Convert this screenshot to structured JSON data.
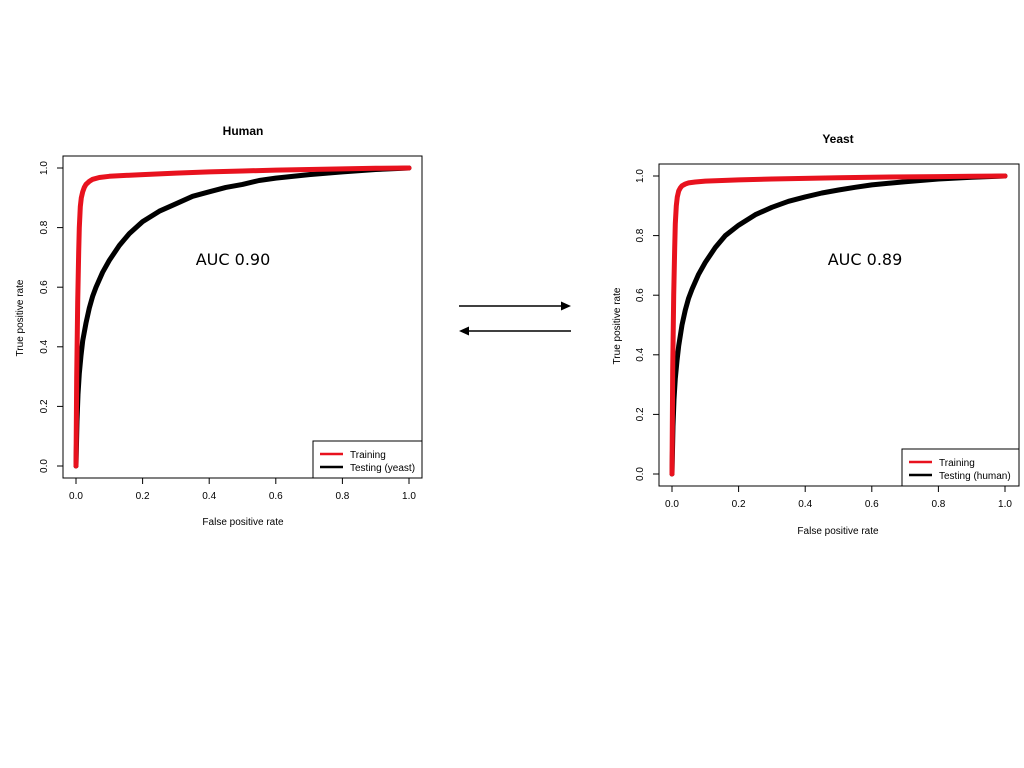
{
  "colors": {
    "training": "#e8121e",
    "testing": "#000000",
    "axis": "#000000",
    "background": "#ffffff"
  },
  "arrows": [
    {
      "direction": "right"
    },
    {
      "direction": "left"
    }
  ],
  "chart_data": [
    {
      "type": "line",
      "title": "Human",
      "xlabel": "False positive rate",
      "ylabel": "True positive rate",
      "xlim": [
        0,
        1
      ],
      "ylim": [
        0,
        1
      ],
      "xticks": [
        "0.0",
        "0.2",
        "0.4",
        "0.6",
        "0.8",
        "1.0"
      ],
      "yticks": [
        "0.0",
        "0.2",
        "0.4",
        "0.6",
        "0.8",
        "1.0"
      ],
      "grid": false,
      "legend_position": "bottom-right",
      "annotation": "AUC 0.90",
      "series": [
        {
          "name": "Training",
          "color": "#e8121e",
          "x": [
            0,
            0.002,
            0.005,
            0.008,
            0.01,
            0.013,
            0.016,
            0.02,
            0.025,
            0.03,
            0.04,
            0.05,
            0.07,
            0.1,
            0.15,
            0.2,
            0.3,
            0.4,
            0.5,
            0.6,
            0.7,
            0.8,
            0.9,
            1.0
          ],
          "y": [
            0,
            0.3,
            0.55,
            0.72,
            0.8,
            0.87,
            0.9,
            0.92,
            0.935,
            0.945,
            0.955,
            0.962,
            0.968,
            0.972,
            0.975,
            0.978,
            0.983,
            0.987,
            0.99,
            0.993,
            0.995,
            0.997,
            0.999,
            1.0
          ]
        },
        {
          "name": "Testing (yeast)",
          "color": "#000000",
          "x": [
            0,
            0.003,
            0.006,
            0.01,
            0.015,
            0.02,
            0.03,
            0.04,
            0.05,
            0.06,
            0.08,
            0.1,
            0.13,
            0.16,
            0.2,
            0.25,
            0.3,
            0.35,
            0.4,
            0.45,
            0.5,
            0.55,
            0.6,
            0.7,
            0.8,
            0.9,
            1.0
          ],
          "y": [
            0,
            0.15,
            0.24,
            0.31,
            0.37,
            0.42,
            0.48,
            0.53,
            0.57,
            0.6,
            0.65,
            0.69,
            0.74,
            0.78,
            0.82,
            0.855,
            0.88,
            0.905,
            0.92,
            0.935,
            0.945,
            0.958,
            0.966,
            0.978,
            0.987,
            0.995,
            1.0
          ]
        }
      ]
    },
    {
      "type": "line",
      "title": "Yeast",
      "xlabel": "False positive rate",
      "ylabel": "True positive rate",
      "xlim": [
        0,
        1
      ],
      "ylim": [
        0,
        1
      ],
      "xticks": [
        "0.0",
        "0.2",
        "0.4",
        "0.6",
        "0.8",
        "1.0"
      ],
      "yticks": [
        "0.0",
        "0.2",
        "0.4",
        "0.6",
        "0.8",
        "1.0"
      ],
      "grid": false,
      "legend_position": "bottom-right",
      "annotation": "AUC 0.89",
      "series": [
        {
          "name": "Training",
          "color": "#e8121e",
          "x": [
            0,
            0.002,
            0.005,
            0.008,
            0.01,
            0.013,
            0.016,
            0.02,
            0.025,
            0.03,
            0.04,
            0.05,
            0.07,
            0.1,
            0.15,
            0.2,
            0.3,
            0.4,
            0.5,
            0.6,
            0.7,
            0.8,
            0.9,
            1.0
          ],
          "y": [
            0,
            0.35,
            0.6,
            0.76,
            0.84,
            0.9,
            0.93,
            0.95,
            0.96,
            0.967,
            0.973,
            0.977,
            0.98,
            0.983,
            0.985,
            0.987,
            0.99,
            0.992,
            0.994,
            0.996,
            0.997,
            0.998,
            0.999,
            1.0
          ]
        },
        {
          "name": "Testing (human)",
          "color": "#000000",
          "x": [
            0,
            0.003,
            0.006,
            0.01,
            0.015,
            0.02,
            0.03,
            0.04,
            0.05,
            0.06,
            0.08,
            0.1,
            0.13,
            0.16,
            0.2,
            0.25,
            0.3,
            0.35,
            0.4,
            0.45,
            0.5,
            0.55,
            0.6,
            0.7,
            0.8,
            0.9,
            1.0
          ],
          "y": [
            0,
            0.16,
            0.25,
            0.32,
            0.38,
            0.43,
            0.5,
            0.55,
            0.59,
            0.62,
            0.67,
            0.71,
            0.76,
            0.8,
            0.835,
            0.87,
            0.895,
            0.915,
            0.93,
            0.943,
            0.953,
            0.962,
            0.97,
            0.981,
            0.99,
            0.996,
            1.0
          ]
        }
      ]
    }
  ]
}
